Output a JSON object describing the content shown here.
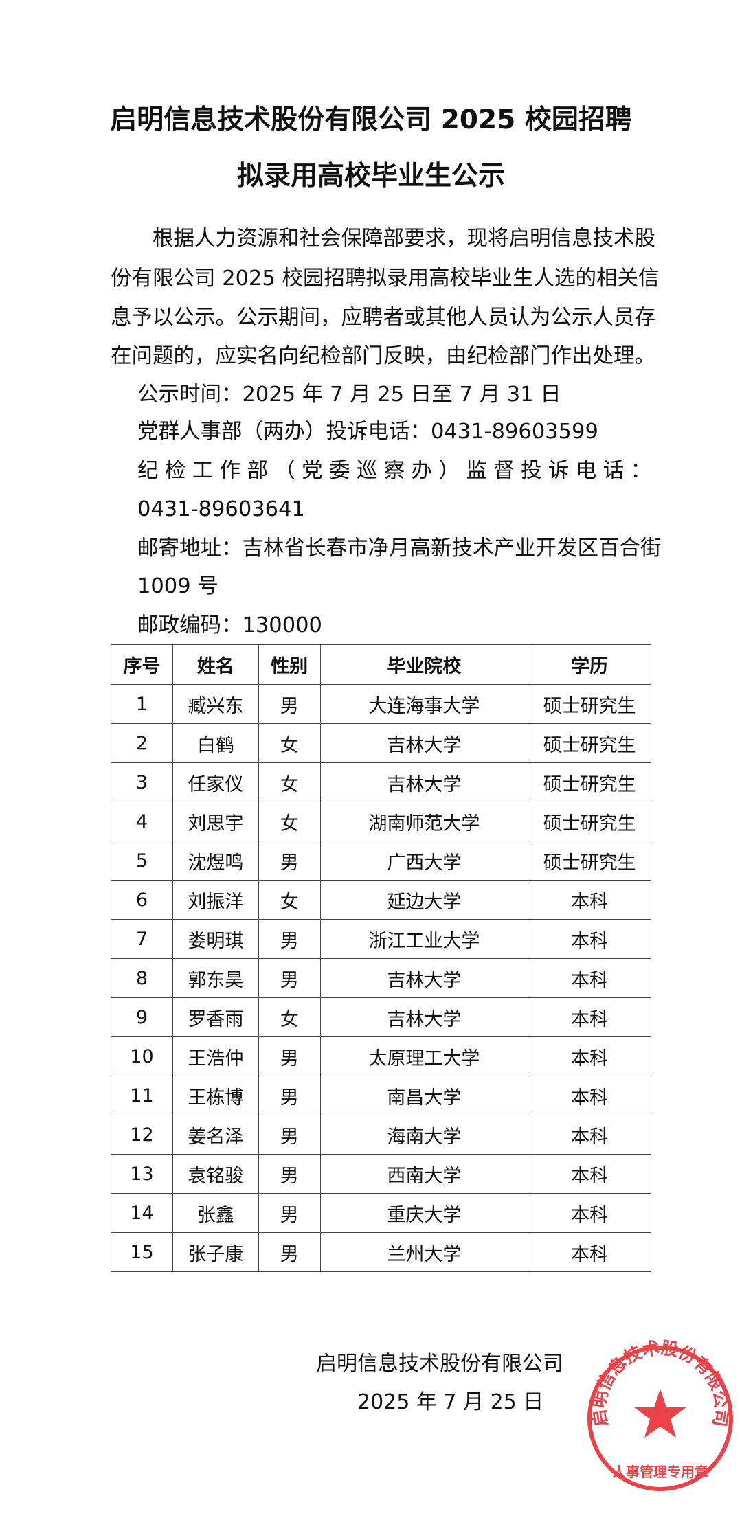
{
  "title": {
    "line1": "启明信息技术股份有限公司 2025 校园招聘",
    "line2": "拟录用高校毕业生公示"
  },
  "intro_lines": [
    "根据人力资源和社会保障部要求，现将启明信息技术股",
    "份有限公司 2025 校园招聘拟录用高校毕业生人选的相关信",
    "息予以公示。公示期间，应聘者或其他人员认为公示人员存",
    "在问题的，应实名向纪检部门反映，由纪检部门作出处理。"
  ],
  "info": {
    "period": "公示时间：2025 年 7 月 25 日至 7 月 31 日",
    "hr_phone": "党群人事部（两办）投诉电话：0431-89603599",
    "discipline_label": "纪检工作部（党委巡察办）监督投诉电话：",
    "discipline_phone": "0431-89603641",
    "address_line1": "邮寄地址：吉林省长春市净月高新技术产业开发区百合街",
    "address_line2": "1009 号",
    "postcode": "邮政编码：130000"
  },
  "table": {
    "headers": [
      "序号",
      "姓名",
      "性别",
      "毕业院校",
      "学历"
    ],
    "rows": [
      [
        "1",
        "臧兴东",
        "男",
        "大连海事大学",
        "硕士研究生"
      ],
      [
        "2",
        "白鹤",
        "女",
        "吉林大学",
        "硕士研究生"
      ],
      [
        "3",
        "任家仪",
        "女",
        "吉林大学",
        "硕士研究生"
      ],
      [
        "4",
        "刘思宇",
        "女",
        "湖南师范大学",
        "硕士研究生"
      ],
      [
        "5",
        "沈煜鸣",
        "男",
        "广西大学",
        "硕士研究生"
      ],
      [
        "6",
        "刘振洋",
        "女",
        "延边大学",
        "本科"
      ],
      [
        "7",
        "娄明琪",
        "男",
        "浙江工业大学",
        "本科"
      ],
      [
        "8",
        "郭东昊",
        "男",
        "吉林大学",
        "本科"
      ],
      [
        "9",
        "罗香雨",
        "女",
        "吉林大学",
        "本科"
      ],
      [
        "10",
        "王浩仲",
        "男",
        "太原理工大学",
        "本科"
      ],
      [
        "11",
        "王栋博",
        "男",
        "南昌大学",
        "本科"
      ],
      [
        "12",
        "姜名泽",
        "男",
        "海南大学",
        "本科"
      ],
      [
        "13",
        "袁铭骏",
        "男",
        "西南大学",
        "本科"
      ],
      [
        "14",
        "张鑫",
        "男",
        "重庆大学",
        "本科"
      ],
      [
        "15",
        "张子康",
        "男",
        "兰州大学",
        "本科"
      ]
    ]
  },
  "signature": {
    "company": "启明信息技术股份有限公司",
    "date": "2025 年 7 月 25 日"
  },
  "stamp": {
    "ring_text": "启明信息技术股份有限公司",
    "bottom_text": "人事管理专用章",
    "color": "#e8222a"
  }
}
